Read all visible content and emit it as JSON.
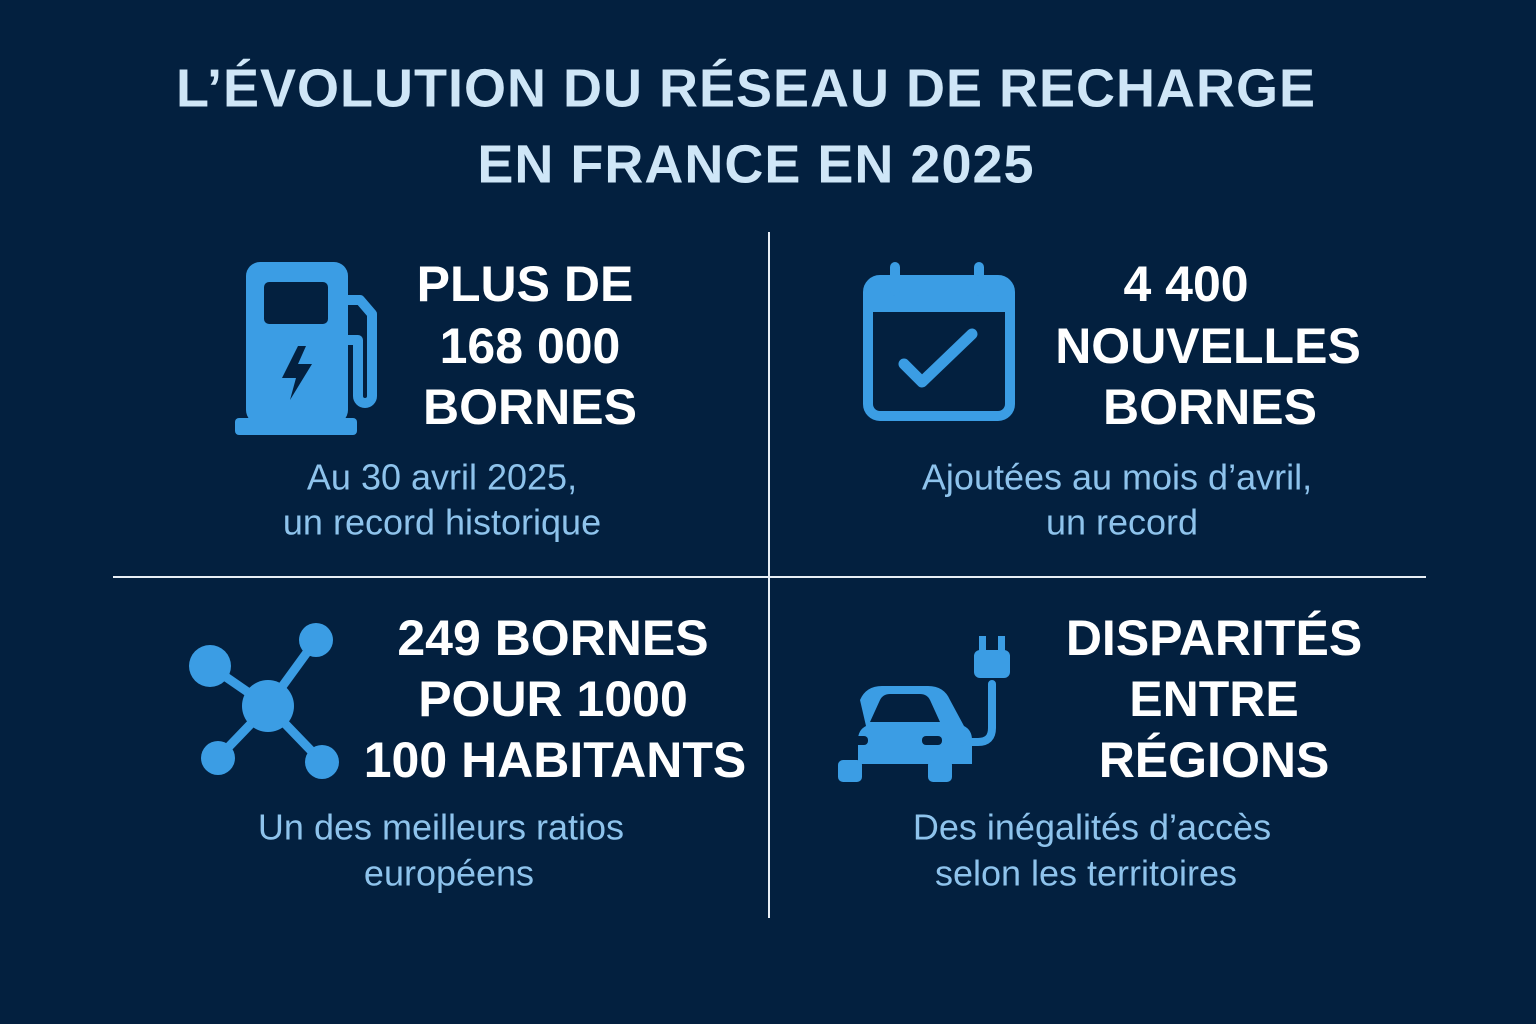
{
  "title": {
    "lines": [
      "L’ÉVOLUTION DU RÉSEAU DE RECHARGE",
      "EN FRANCE EN 2025"
    ]
  },
  "panels": [
    {
      "headline": [
        "PLUS DE",
        "168 000",
        "BORNES"
      ],
      "subtitle": [
        "Au 30 avril 2025,",
        "un record historique"
      ]
    },
    {
      "headline": [
        "4 400",
        "NOUVELLES",
        "BORNES"
      ],
      "subtitle": [
        "Ajoutées au mois d’avril,",
        "un record"
      ]
    },
    {
      "headline": [
        "249 BORNES",
        "POUR 1000",
        "100 HABITANTS"
      ],
      "subtitle": [
        "Un des meilleurs ratios",
        "européens"
      ]
    },
    {
      "headline": [
        "DISPARITÉS",
        "ENTRE",
        "RÉGIONS"
      ],
      "subtitle": [
        "Des inégalités d’accès",
        "selon les territoires"
      ]
    }
  ]
}
